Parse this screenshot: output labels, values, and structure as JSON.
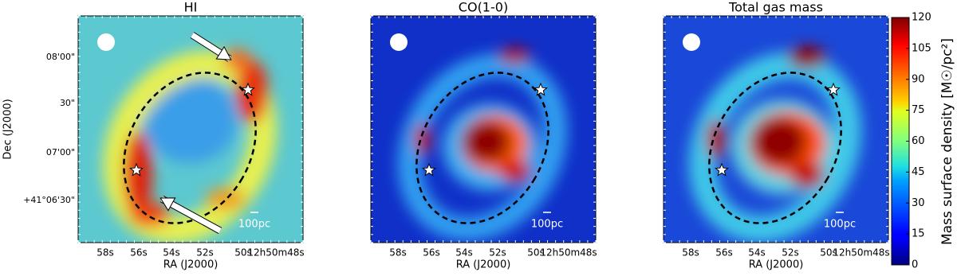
{
  "panels": [
    {
      "title": "HI",
      "xlabel": "RA (J2000)",
      "ylabel": "Dec (J2000)",
      "xtick_labels": [
        "58s",
        "56s",
        "54s",
        "52s",
        "50s",
        "12h50m48s"
      ],
      "ytick_labels": [
        "08'00\"",
        "30\"",
        "07'00\"",
        "+41°06'30\""
      ],
      "scale_bar": "100pc"
    },
    {
      "title": "CO(1-0)",
      "xlabel": "RA (J2000)",
      "xtick_labels": [
        "58s",
        "56s",
        "54s",
        "52s",
        "50s",
        "12h50m48s"
      ],
      "scale_bar": "100pc"
    },
    {
      "title": "Total gas mass",
      "xlabel": "RA (J2000)",
      "xtick_labels": [
        "58s",
        "56s",
        "54s",
        "52s",
        "50s",
        "12h50m48s"
      ],
      "scale_bar": "100pc"
    }
  ],
  "colorbar": {
    "label": "Mass surface density [M☉/pc²]",
    "lim": [
      0,
      120
    ],
    "ticks": [
      0,
      15,
      30,
      45,
      60,
      75,
      90,
      105,
      120
    ]
  }
}
